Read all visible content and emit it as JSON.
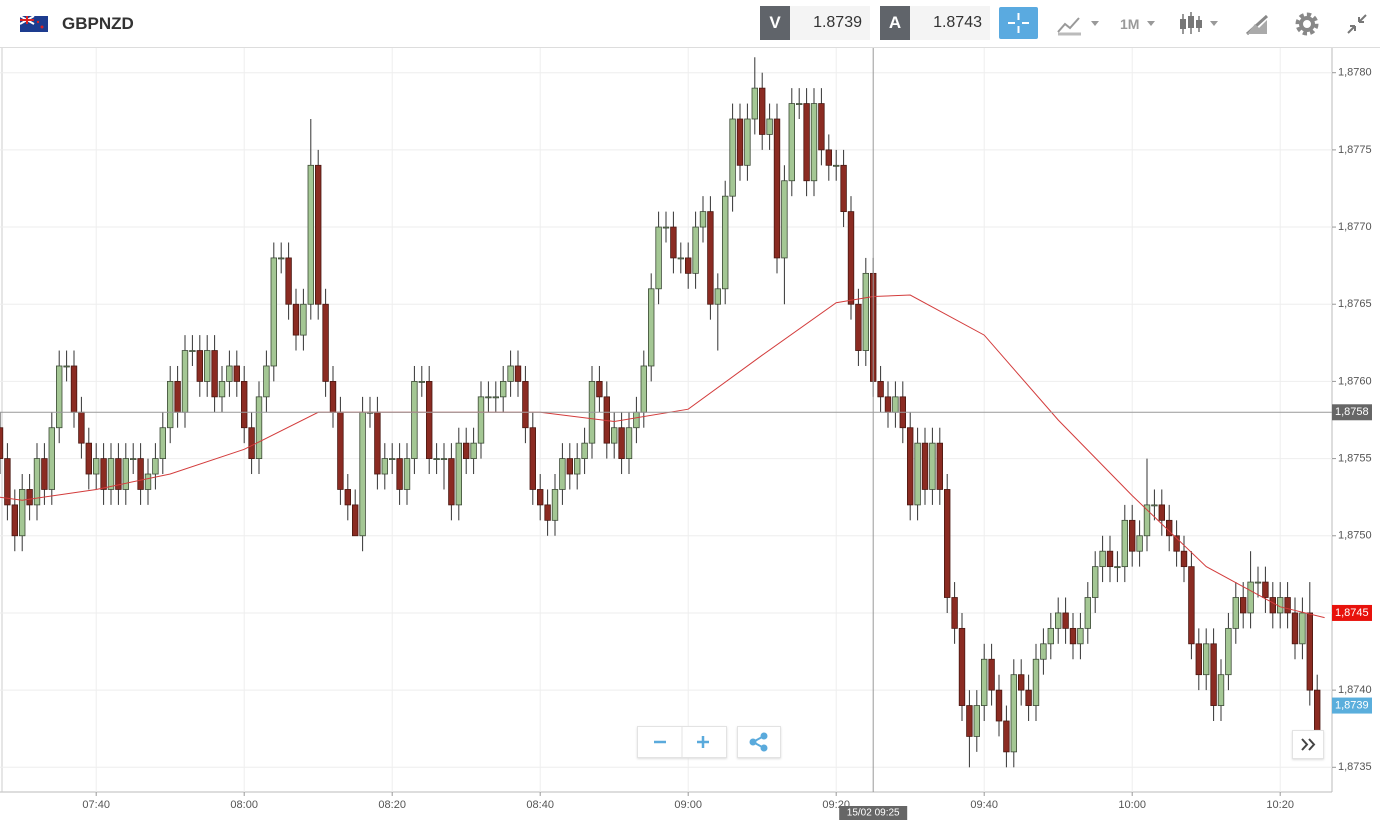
{
  "header": {
    "symbol": "GBPNZD",
    "bid_label": "V",
    "bid": "1.8739",
    "ask_label": "A",
    "ask": "1.8743",
    "timeframe": "1M"
  },
  "chart_data": {
    "type": "candlestick",
    "x": [
      "07:27",
      "07:28",
      "07:29",
      "07:30",
      "07:31",
      "07:32",
      "07:33",
      "07:34",
      "07:35",
      "07:36",
      "07:37",
      "07:38",
      "07:39",
      "07:40",
      "07:41",
      "07:42",
      "07:43",
      "07:44",
      "07:45",
      "07:46",
      "07:47",
      "07:48",
      "07:49",
      "07:50",
      "07:51",
      "07:52",
      "07:53",
      "07:54",
      "07:55",
      "07:56",
      "07:57",
      "07:58",
      "07:59",
      "08:00",
      "08:01",
      "08:02",
      "08:03",
      "08:04",
      "08:05",
      "08:06",
      "08:07",
      "08:08",
      "08:09",
      "08:10",
      "08:11",
      "08:12",
      "08:13",
      "08:14",
      "08:15",
      "08:16",
      "08:17",
      "08:18",
      "08:19",
      "08:20",
      "08:21",
      "08:22",
      "08:23",
      "08:24",
      "08:25",
      "08:26",
      "08:27",
      "08:28",
      "08:29",
      "08:30",
      "08:31",
      "08:32",
      "08:33",
      "08:34",
      "08:35",
      "08:36",
      "08:37",
      "08:38",
      "08:39",
      "08:40",
      "08:41",
      "08:42",
      "08:43",
      "08:44",
      "08:45",
      "08:46",
      "08:47",
      "08:48",
      "08:49",
      "08:50",
      "08:51",
      "08:52",
      "08:53",
      "08:54",
      "08:55",
      "08:56",
      "08:57",
      "08:58",
      "08:59",
      "09:00",
      "09:01",
      "09:02",
      "09:03",
      "09:04",
      "09:05",
      "09:06",
      "09:07",
      "09:08",
      "09:09",
      "09:10",
      "09:11",
      "09:12",
      "09:13",
      "09:14",
      "09:15",
      "09:16",
      "09:17",
      "09:18",
      "09:19",
      "09:20",
      "09:21",
      "09:22",
      "09:23",
      "09:24",
      "09:25",
      "09:26",
      "09:27",
      "09:28",
      "09:29",
      "09:30",
      "09:31",
      "09:32",
      "09:33",
      "09:34",
      "09:35",
      "09:36",
      "09:37",
      "09:38",
      "09:39",
      "09:40",
      "09:41",
      "09:42",
      "09:43",
      "09:44",
      "09:45",
      "09:46",
      "09:47",
      "09:48",
      "09:49",
      "09:50",
      "09:51",
      "09:52",
      "09:53",
      "09:54",
      "09:55",
      "09:56",
      "09:57",
      "09:58",
      "09:59",
      "10:00",
      "10:01",
      "10:02",
      "10:03",
      "10:04",
      "10:05",
      "10:06",
      "10:07",
      "10:08",
      "10:09",
      "10:10",
      "10:11",
      "10:12",
      "10:13",
      "10:14",
      "10:15",
      "10:16",
      "10:17",
      "10:18",
      "10:19",
      "10:20",
      "10:21",
      "10:22",
      "10:23",
      "10:24",
      "10:25"
    ],
    "ohlc": [
      [
        1.8757,
        1.8758,
        1.8754,
        1.8755
      ],
      [
        1.8755,
        1.8756,
        1.8751,
        1.8752
      ],
      [
        1.8752,
        1.8753,
        1.8749,
        1.875
      ],
      [
        1.875,
        1.8754,
        1.8749,
        1.8753
      ],
      [
        1.8753,
        1.8754,
        1.8751,
        1.8752
      ],
      [
        1.8752,
        1.8756,
        1.8751,
        1.8755
      ],
      [
        1.8755,
        1.8756,
        1.8752,
        1.8753
      ],
      [
        1.8753,
        1.8758,
        1.8752,
        1.8757
      ],
      [
        1.8757,
        1.8762,
        1.8756,
        1.8761
      ],
      [
        1.8761,
        1.8762,
        1.876,
        1.8761
      ],
      [
        1.8761,
        1.8762,
        1.8757,
        1.8758
      ],
      [
        1.8758,
        1.8759,
        1.8755,
        1.8756
      ],
      [
        1.8756,
        1.8757,
        1.8753,
        1.8754
      ],
      [
        1.8754,
        1.8756,
        1.8753,
        1.8755
      ],
      [
        1.8755,
        1.8756,
        1.8752,
        1.8753
      ],
      [
        1.8753,
        1.8756,
        1.8752,
        1.8755
      ],
      [
        1.8755,
        1.8756,
        1.8752,
        1.8753
      ],
      [
        1.8753,
        1.8756,
        1.8752,
        1.8755
      ],
      [
        1.8755,
        1.8756,
        1.8754,
        1.8755
      ],
      [
        1.8755,
        1.8756,
        1.8752,
        1.8753
      ],
      [
        1.8753,
        1.8755,
        1.8752,
        1.8754
      ],
      [
        1.8754,
        1.8756,
        1.8753,
        1.8755
      ],
      [
        1.8755,
        1.8758,
        1.8754,
        1.8757
      ],
      [
        1.8757,
        1.8761,
        1.8756,
        1.876
      ],
      [
        1.876,
        1.8761,
        1.8757,
        1.8758
      ],
      [
        1.8758,
        1.8763,
        1.8757,
        1.8762
      ],
      [
        1.8762,
        1.8763,
        1.8761,
        1.8762
      ],
      [
        1.8762,
        1.8763,
        1.8759,
        1.876
      ],
      [
        1.876,
        1.8763,
        1.8759,
        1.8762
      ],
      [
        1.8762,
        1.8763,
        1.8758,
        1.8759
      ],
      [
        1.8759,
        1.8761,
        1.8758,
        1.876
      ],
      [
        1.876,
        1.8762,
        1.8759,
        1.8761
      ],
      [
        1.8761,
        1.8762,
        1.8759,
        1.876
      ],
      [
        1.876,
        1.8761,
        1.8756,
        1.8757
      ],
      [
        1.8757,
        1.8758,
        1.8754,
        1.8755
      ],
      [
        1.8755,
        1.876,
        1.8754,
        1.8759
      ],
      [
        1.8759,
        1.8762,
        1.8758,
        1.8761
      ],
      [
        1.8761,
        1.8769,
        1.876,
        1.8768
      ],
      [
        1.8768,
        1.8769,
        1.8767,
        1.8768
      ],
      [
        1.8768,
        1.8769,
        1.8764,
        1.8765
      ],
      [
        1.8765,
        1.8766,
        1.8762,
        1.8763
      ],
      [
        1.8763,
        1.8766,
        1.8762,
        1.8765
      ],
      [
        1.8765,
        1.8777,
        1.8764,
        1.8774
      ],
      [
        1.8774,
        1.8775,
        1.8764,
        1.8765
      ],
      [
        1.8765,
        1.8766,
        1.8759,
        1.876
      ],
      [
        1.876,
        1.8761,
        1.8757,
        1.8758
      ],
      [
        1.8758,
        1.8759,
        1.8752,
        1.8753
      ],
      [
        1.8753,
        1.8754,
        1.8751,
        1.8752
      ],
      [
        1.8752,
        1.8753,
        1.875,
        1.875
      ],
      [
        1.875,
        1.8759,
        1.8749,
        1.8758
      ],
      [
        1.8758,
        1.8759,
        1.8757,
        1.8758
      ],
      [
        1.8758,
        1.8759,
        1.8753,
        1.8754
      ],
      [
        1.8754,
        1.8756,
        1.8753,
        1.8755
      ],
      [
        1.8755,
        1.8756,
        1.8754,
        1.8755
      ],
      [
        1.8755,
        1.8756,
        1.8752,
        1.8753
      ],
      [
        1.8753,
        1.8756,
        1.8752,
        1.8755
      ],
      [
        1.8755,
        1.8761,
        1.8754,
        1.876
      ],
      [
        1.876,
        1.8761,
        1.8759,
        1.876
      ],
      [
        1.876,
        1.8761,
        1.8754,
        1.8755
      ],
      [
        1.8755,
        1.8756,
        1.8754,
        1.8755
      ],
      [
        1.8755,
        1.8756,
        1.8753,
        1.8755
      ],
      [
        1.8755,
        1.8756,
        1.8751,
        1.8752
      ],
      [
        1.8752,
        1.8757,
        1.8751,
        1.8756
      ],
      [
        1.8756,
        1.8757,
        1.8754,
        1.8755
      ],
      [
        1.8755,
        1.8757,
        1.8754,
        1.8756
      ],
      [
        1.8756,
        1.876,
        1.8755,
        1.8759
      ],
      [
        1.8759,
        1.876,
        1.8758,
        1.8759
      ],
      [
        1.8759,
        1.876,
        1.8758,
        1.8759
      ],
      [
        1.8759,
        1.8761,
        1.8758,
        1.876
      ],
      [
        1.876,
        1.8762,
        1.8759,
        1.8761
      ],
      [
        1.8761,
        1.8762,
        1.8759,
        1.876
      ],
      [
        1.876,
        1.8761,
        1.8756,
        1.8757
      ],
      [
        1.8757,
        1.8758,
        1.8752,
        1.8753
      ],
      [
        1.8753,
        1.8754,
        1.8751,
        1.8752
      ],
      [
        1.8752,
        1.8753,
        1.875,
        1.8751
      ],
      [
        1.8751,
        1.8754,
        1.875,
        1.8753
      ],
      [
        1.8753,
        1.8756,
        1.8752,
        1.8755
      ],
      [
        1.8755,
        1.8756,
        1.8753,
        1.8754
      ],
      [
        1.8754,
        1.8756,
        1.8753,
        1.8755
      ],
      [
        1.8755,
        1.8757,
        1.8754,
        1.8756
      ],
      [
        1.8756,
        1.8761,
        1.8755,
        1.876
      ],
      [
        1.876,
        1.8761,
        1.8758,
        1.8759
      ],
      [
        1.8759,
        1.876,
        1.8755,
        1.8756
      ],
      [
        1.8756,
        1.8758,
        1.8755,
        1.8757
      ],
      [
        1.8757,
        1.8758,
        1.8754,
        1.8755
      ],
      [
        1.8755,
        1.8758,
        1.8754,
        1.8757
      ],
      [
        1.8757,
        1.8759,
        1.8756,
        1.8758
      ],
      [
        1.8758,
        1.8762,
        1.8757,
        1.8761
      ],
      [
        1.8761,
        1.8767,
        1.876,
        1.8766
      ],
      [
        1.8766,
        1.8771,
        1.8765,
        1.877
      ],
      [
        1.877,
        1.8771,
        1.8769,
        1.877
      ],
      [
        1.877,
        1.8771,
        1.8767,
        1.8768
      ],
      [
        1.8768,
        1.8769,
        1.8767,
        1.8768
      ],
      [
        1.8768,
        1.8769,
        1.8766,
        1.8767
      ],
      [
        1.8767,
        1.8771,
        1.8766,
        1.877
      ],
      [
        1.877,
        1.8772,
        1.8769,
        1.8771
      ],
      [
        1.8771,
        1.8772,
        1.8764,
        1.8765
      ],
      [
        1.8765,
        1.8767,
        1.8762,
        1.8766
      ],
      [
        1.8766,
        1.8773,
        1.8765,
        1.8772
      ],
      [
        1.8772,
        1.8778,
        1.8771,
        1.8777
      ],
      [
        1.8777,
        1.8778,
        1.8773,
        1.8774
      ],
      [
        1.8774,
        1.8778,
        1.8773,
        1.8777
      ],
      [
        1.8777,
        1.8781,
        1.8776,
        1.8779
      ],
      [
        1.8779,
        1.878,
        1.8775,
        1.8776
      ],
      [
        1.8776,
        1.8778,
        1.8775,
        1.8777
      ],
      [
        1.8777,
        1.8778,
        1.8767,
        1.8768
      ],
      [
        1.8768,
        1.8774,
        1.8765,
        1.8773
      ],
      [
        1.8773,
        1.8779,
        1.8772,
        1.8778
      ],
      [
        1.8778,
        1.8779,
        1.8777,
        1.8778
      ],
      [
        1.8778,
        1.8779,
        1.8772,
        1.8773
      ],
      [
        1.8773,
        1.8779,
        1.8772,
        1.8778
      ],
      [
        1.8778,
        1.8779,
        1.8774,
        1.8775
      ],
      [
        1.8775,
        1.8776,
        1.8773,
        1.8774
      ],
      [
        1.8774,
        1.8775,
        1.8773,
        1.8774
      ],
      [
        1.8774,
        1.8775,
        1.877,
        1.8771
      ],
      [
        1.8771,
        1.8772,
        1.8764,
        1.8765
      ],
      [
        1.8765,
        1.8766,
        1.8761,
        1.8762
      ],
      [
        1.8762,
        1.8768,
        1.8761,
        1.8767
      ],
      [
        1.8767,
        1.8768,
        1.8759,
        1.876
      ],
      [
        1.876,
        1.8761,
        1.8758,
        1.8759
      ],
      [
        1.8759,
        1.876,
        1.8757,
        1.8758
      ],
      [
        1.8758,
        1.876,
        1.8757,
        1.8759
      ],
      [
        1.8759,
        1.876,
        1.8756,
        1.8757
      ],
      [
        1.8757,
        1.8758,
        1.8751,
        1.8752
      ],
      [
        1.8752,
        1.8757,
        1.8751,
        1.8756
      ],
      [
        1.8756,
        1.8757,
        1.8752,
        1.8753
      ],
      [
        1.8753,
        1.8757,
        1.8752,
        1.8756
      ],
      [
        1.8756,
        1.8757,
        1.8752,
        1.8753
      ],
      [
        1.8753,
        1.8754,
        1.8745,
        1.8746
      ],
      [
        1.8746,
        1.8747,
        1.8743,
        1.8744
      ],
      [
        1.8744,
        1.8745,
        1.8738,
        1.8739
      ],
      [
        1.8739,
        1.874,
        1.8735,
        1.8737
      ],
      [
        1.8737,
        1.874,
        1.8736,
        1.8739
      ],
      [
        1.8739,
        1.8743,
        1.8738,
        1.8742
      ],
      [
        1.8742,
        1.8743,
        1.8739,
        1.874
      ],
      [
        1.874,
        1.8741,
        1.8737,
        1.8738
      ],
      [
        1.8738,
        1.8739,
        1.8735,
        1.8736
      ],
      [
        1.8736,
        1.8742,
        1.8735,
        1.8741
      ],
      [
        1.8741,
        1.8742,
        1.8739,
        1.874
      ],
      [
        1.874,
        1.8741,
        1.8738,
        1.8739
      ],
      [
        1.8739,
        1.8743,
        1.8738,
        1.8742
      ],
      [
        1.8742,
        1.8744,
        1.8741,
        1.8743
      ],
      [
        1.8743,
        1.8745,
        1.8742,
        1.8744
      ],
      [
        1.8744,
        1.8746,
        1.8743,
        1.8745
      ],
      [
        1.8745,
        1.8746,
        1.8743,
        1.8744
      ],
      [
        1.8744,
        1.8745,
        1.8742,
        1.8743
      ],
      [
        1.8743,
        1.8745,
        1.8742,
        1.8744
      ],
      [
        1.8744,
        1.8747,
        1.8743,
        1.8746
      ],
      [
        1.8746,
        1.8749,
        1.8745,
        1.8748
      ],
      [
        1.8748,
        1.875,
        1.8747,
        1.8749
      ],
      [
        1.8749,
        1.875,
        1.8747,
        1.8748
      ],
      [
        1.8748,
        1.8749,
        1.8747,
        1.8748
      ],
      [
        1.8748,
        1.8752,
        1.8747,
        1.8751
      ],
      [
        1.8751,
        1.8752,
        1.8748,
        1.8749
      ],
      [
        1.8749,
        1.8751,
        1.8748,
        1.875
      ],
      [
        1.875,
        1.8755,
        1.8749,
        1.8752
      ],
      [
        1.8752,
        1.8753,
        1.8751,
        1.8752
      ],
      [
        1.8752,
        1.8753,
        1.875,
        1.8751
      ],
      [
        1.8751,
        1.8752,
        1.8749,
        1.875
      ],
      [
        1.875,
        1.8751,
        1.8748,
        1.8749
      ],
      [
        1.8749,
        1.875,
        1.8747,
        1.8748
      ],
      [
        1.8748,
        1.8749,
        1.8742,
        1.8743
      ],
      [
        1.8743,
        1.8744,
        1.874,
        1.8741
      ],
      [
        1.8741,
        1.8744,
        1.874,
        1.8743
      ],
      [
        1.8743,
        1.8744,
        1.8738,
        1.8739
      ],
      [
        1.8739,
        1.8742,
        1.8738,
        1.8741
      ],
      [
        1.8741,
        1.8745,
        1.874,
        1.8744
      ],
      [
        1.8744,
        1.8747,
        1.8743,
        1.8746
      ],
      [
        1.8746,
        1.8747,
        1.8744,
        1.8745
      ],
      [
        1.8745,
        1.8749,
        1.8744,
        1.8747
      ],
      [
        1.8747,
        1.8748,
        1.8746,
        1.8747
      ],
      [
        1.8747,
        1.8748,
        1.8745,
        1.8746
      ],
      [
        1.8746,
        1.8747,
        1.8744,
        1.8745
      ],
      [
        1.8745,
        1.8747,
        1.8744,
        1.8746
      ],
      [
        1.8746,
        1.8747,
        1.8744,
        1.8745
      ],
      [
        1.8745,
        1.8746,
        1.8742,
        1.8743
      ],
      [
        1.8743,
        1.8746,
        1.8742,
        1.8745
      ],
      [
        1.8745,
        1.8747,
        1.8739,
        1.874
      ],
      [
        1.874,
        1.8741,
        1.8736,
        1.8737
      ]
    ],
    "up_color": "#a4c794",
    "down_color": "#8b2b22",
    "ma": {
      "color": "#d33c3c",
      "x": [
        "07:27",
        "07:30",
        "07:40",
        "07:50",
        "08:00",
        "08:10",
        "08:20",
        "08:30",
        "08:40",
        "08:50",
        "09:00",
        "09:10",
        "09:20",
        "09:25",
        "09:30",
        "09:40",
        "09:50",
        "10:00",
        "10:10",
        "10:20",
        "10:26"
      ],
      "values": [
        1.87525,
        1.87523,
        1.8753,
        1.8754,
        1.87556,
        1.8758,
        1.8758,
        1.8758,
        1.8758,
        1.87574,
        1.87582,
        1.87617,
        1.87651,
        1.87655,
        1.87656,
        1.8763,
        1.87575,
        1.87526,
        1.8748,
        1.87454,
        1.87447
      ]
    },
    "xlim": [
      "07:27",
      "10:27"
    ],
    "xticks": [
      "07:40",
      "08:00",
      "08:20",
      "08:40",
      "09:00",
      "09:20",
      "09:40",
      "10:00",
      "10:20"
    ],
    "ylim": [
      1.87334,
      1.87816
    ],
    "yticks": [
      {
        "value": 1.8735,
        "label": "1,8735"
      },
      {
        "value": 1.874,
        "label": "1,8740"
      },
      {
        "value": 1.8745,
        "label": "1,8745"
      },
      {
        "value": 1.875,
        "label": "1,8750"
      },
      {
        "value": 1.8755,
        "label": "1,8755"
      },
      {
        "value": 1.876,
        "label": "1,8760"
      },
      {
        "value": 1.8765,
        "label": "1,8765"
      },
      {
        "value": 1.877,
        "label": "1,8770"
      },
      {
        "value": 1.8775,
        "label": "1,8775"
      },
      {
        "value": 1.878,
        "label": "1,8780"
      }
    ],
    "grid": true,
    "crosshair": {
      "x": "09:25",
      "x_label": "15/02 09:25",
      "y": 1.8758,
      "y_label": "1,8758",
      "color": "#666666"
    },
    "price_tags": [
      {
        "value": 1.8745,
        "label": "1,8745",
        "color": "#e8120c"
      },
      {
        "value": 1.8739,
        "label": "1,8739",
        "color": "#5aaedc"
      }
    ]
  }
}
